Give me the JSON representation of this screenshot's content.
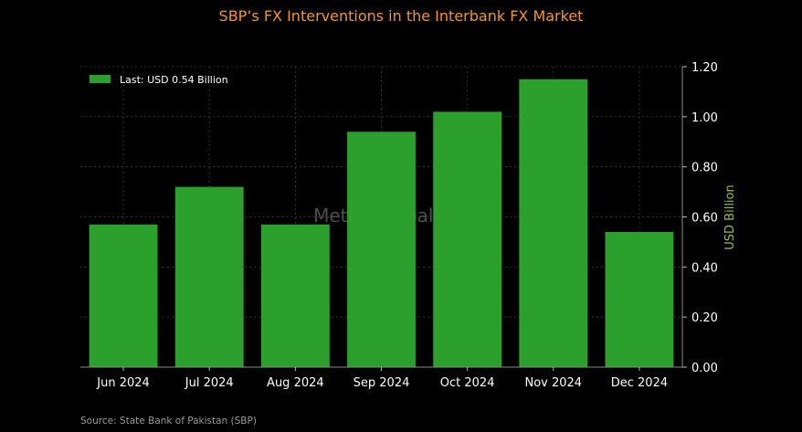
{
  "chart_data": {
    "type": "bar",
    "title": "SBP’s FX Interventions in the Interbank FX Market",
    "categories": [
      "Jun 2024",
      "Jul 2024",
      "Aug 2024",
      "Sep 2024",
      "Oct 2024",
      "Nov 2024",
      "Dec 2024"
    ],
    "values": [
      0.57,
      0.72,
      0.57,
      0.94,
      1.02,
      1.15,
      0.54
    ],
    "xlabel": "",
    "ylabel": "USD Billion",
    "ylim": [
      0,
      1.2
    ],
    "yticks": [
      "0.00",
      "0.20",
      "0.40",
      "0.60",
      "0.80",
      "1.00",
      "1.20"
    ],
    "y_axis_side": "right",
    "grid": true,
    "legend": {
      "label": "Last: USD 0.54 Billion",
      "placement": "top-left"
    },
    "watermark": "Mettis Global News",
    "source": "Source: State Bank of Pakistan (SBP)",
    "colors": {
      "background": "#000000",
      "bar": "#2ca02c",
      "title": "#f0962a",
      "ylabel": "#9bbf3a",
      "text": "#ffffff",
      "grid": "#3a3a3a",
      "source": "#9a9a9a"
    }
  }
}
